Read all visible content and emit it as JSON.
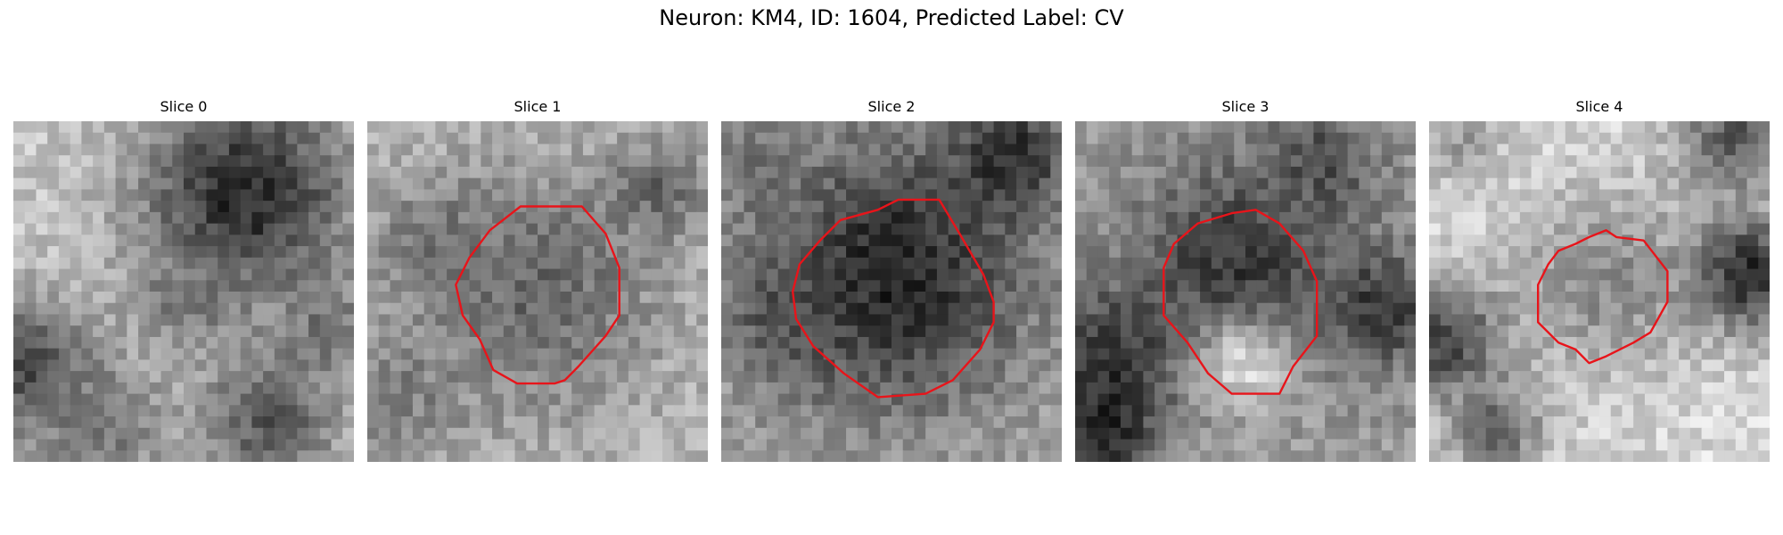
{
  "figure": {
    "title": "Neuron: KM4, ID: 1604, Predicted Label: CV"
  },
  "panels": [
    {
      "label": "Slice 0",
      "has_contour": false,
      "seed": 11
    },
    {
      "label": "Slice 1",
      "has_contour": true,
      "seed": 23
    },
    {
      "label": "Slice 2",
      "has_contour": true,
      "seed": 37
    },
    {
      "label": "Slice 3",
      "has_contour": true,
      "seed": 51
    },
    {
      "label": "Slice 4",
      "has_contour": true,
      "seed": 67
    }
  ],
  "colors": {
    "contour": "#e8141a"
  },
  "image": {
    "grid": 30,
    "colormap": "gray"
  }
}
